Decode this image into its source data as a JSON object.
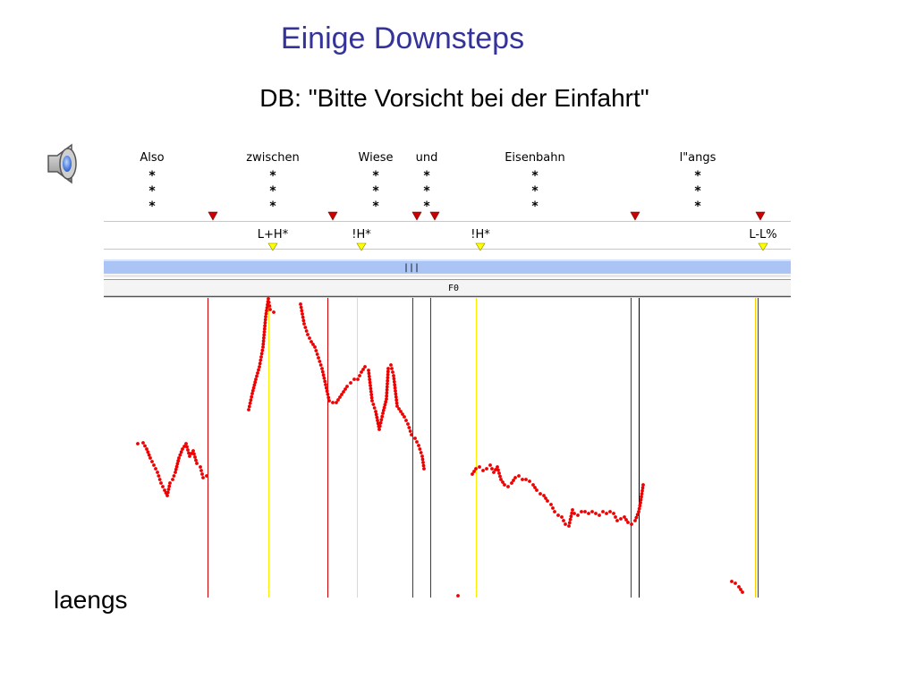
{
  "slide": {
    "title": "Einige Downsteps",
    "subtitle": "DB: \"Bitte Vorsicht bei der Einfahrt\"",
    "footer": "laengs",
    "speaker_icon": "speaker-icon"
  },
  "tiers": {
    "words": [
      {
        "text": "Also",
        "stars": 3
      },
      {
        "text": "zwischen",
        "stars": 3
      },
      {
        "text": "Wiese",
        "stars": 3
      },
      {
        "text": "und",
        "stars": 3
      },
      {
        "text": "Eisenbahn",
        "stars": 3
      },
      {
        "text": "l\"angs",
        "stars": 3
      }
    ],
    "tones": [
      "L+H*",
      "!H*",
      "!H*",
      "L-L%"
    ],
    "scrollbar_grip": "|||",
    "f0_label": "F0"
  },
  "colors": {
    "title": "#333399",
    "boundary": "#cc0000",
    "tone_marker": "#ffff00",
    "f0_points": "#ee0000",
    "scrollbar": "#aac4f5"
  }
}
